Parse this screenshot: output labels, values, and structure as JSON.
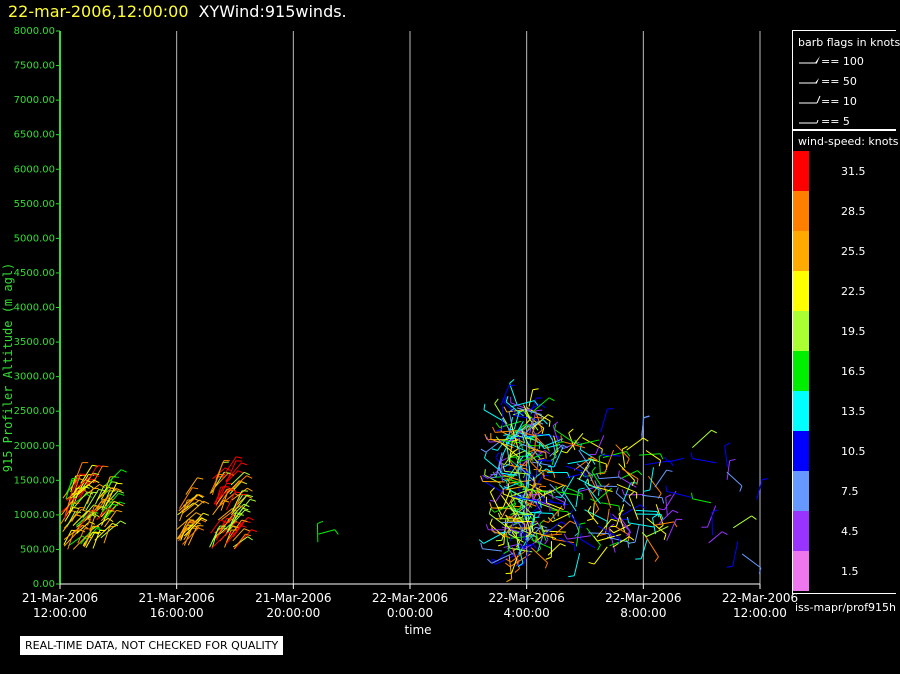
{
  "header": {
    "date": "22-mar-2006,12:00:00",
    "title": "XYWind:915winds."
  },
  "chart_data": {
    "type": "scatter",
    "ylabel": "915 Profiler Altitude (m agl)",
    "xlabel": "time",
    "ylim": [
      0,
      8000
    ],
    "yticks": [
      "0.00",
      "500.00",
      "1000.00",
      "1500.00",
      "2000.00",
      "2500.00",
      "3000.00",
      "3500.00",
      "4000.00",
      "4500.00",
      "5000.00",
      "5500.00",
      "6000.00",
      "6500.00",
      "7000.00",
      "7500.00",
      "8000.00"
    ],
    "xticks": [
      {
        "date": "21-Mar-2006",
        "time": "12:00:00"
      },
      {
        "date": "21-Mar-2006",
        "time": "16:00:00"
      },
      {
        "date": "21-Mar-2006",
        "time": "20:00:00"
      },
      {
        "date": "22-Mar-2006",
        "time": "0:00:00"
      },
      {
        "date": "22-Mar-2006",
        "time": "4:00:00"
      },
      {
        "date": "22-Mar-2006",
        "time": "8:00:00"
      },
      {
        "date": "22-Mar-2006",
        "time": "12:00:00"
      }
    ],
    "xlim_hours": [
      0,
      24
    ],
    "grid": true,
    "clusters": [
      {
        "hours": [
          0.0,
          1.6
        ],
        "alt": [
          500,
          1500
        ],
        "speeds": [
          19.5,
          22.5,
          25.5,
          28.5,
          31.5,
          16.5
        ],
        "count": 90
      },
      {
        "hours": [
          4.0,
          4.4
        ],
        "alt": [
          550,
          1300
        ],
        "speeds": [
          25.5,
          28.5,
          22.5
        ],
        "count": 25
      },
      {
        "hours": [
          5.1,
          6.0
        ],
        "alt": [
          500,
          1550
        ],
        "speeds": [
          31.5,
          28.5,
          25.5,
          19.5
        ],
        "count": 60
      },
      {
        "hours": [
          8.7,
          8.9
        ],
        "alt": [
          500,
          800
        ],
        "speeds": [
          16.5
        ],
        "count": 2
      },
      {
        "hours": [
          15.1,
          16.4
        ],
        "alt": [
          400,
          2600
        ],
        "speeds": [
          10.5,
          13.5,
          16.5,
          19.5,
          22.5,
          25.5,
          28.5,
          4.5,
          7.5
        ],
        "count": 220
      },
      {
        "hours": [
          16.5,
          20.5
        ],
        "alt": [
          400,
          2200
        ],
        "speeds": [
          4.5,
          7.5,
          10.5,
          13.5,
          16.5,
          22.5,
          28.5
        ],
        "count": 130
      },
      {
        "hours": [
          20.5,
          24.0
        ],
        "alt": [
          350,
          2000
        ],
        "speeds": [
          4.5,
          7.5,
          10.5,
          16.5,
          19.5
        ],
        "count": 20
      }
    ]
  },
  "legend": {
    "barb_title": "barb flags in knots",
    "barbs": [
      "== 100",
      "== 50",
      "== 10",
      "== 5"
    ],
    "speed_title": "wind-speed: knots",
    "speed_levels": [
      {
        "label": "31.5",
        "color": "#ff0000"
      },
      {
        "label": "28.5",
        "color": "#ff8000"
      },
      {
        "label": "25.5",
        "color": "#ffaa00"
      },
      {
        "label": "22.5",
        "color": "#ffff00"
      },
      {
        "label": "19.5",
        "color": "#aaff33"
      },
      {
        "label": "16.5",
        "color": "#00ee00"
      },
      {
        "label": "13.5",
        "color": "#00ffff"
      },
      {
        "label": "10.5",
        "color": "#0000ff"
      },
      {
        "label": "7.5",
        "color": "#6699ff"
      },
      {
        "label": "4.5",
        "color": "#9933ff"
      },
      {
        "label": "1.5",
        "color": "#ee77ee"
      }
    ]
  },
  "source": "iss-mapr/prof915h",
  "notice": "REAL-TIME DATA, NOT CHECKED FOR QUALITY",
  "colors": {
    "axis": "#33dd33",
    "date": "#ffff33",
    "grid": "#bbbbbb"
  }
}
